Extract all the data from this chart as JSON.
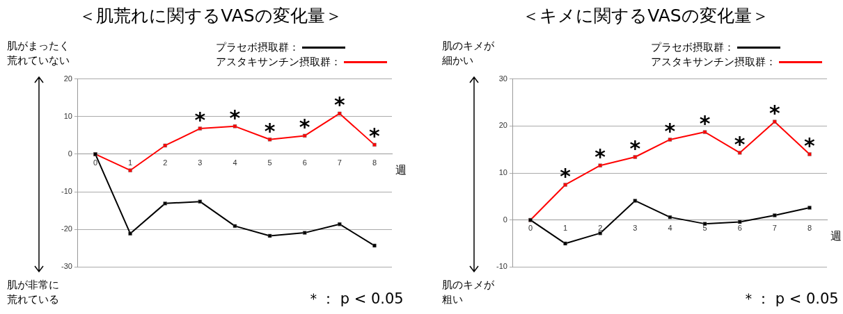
{
  "chart_data": [
    {
      "type": "line",
      "title": "＜肌荒れに関するVASの変化量＞",
      "xlabel": "週",
      "categories": [
        "0",
        "1",
        "2",
        "3",
        "4",
        "5",
        "6",
        "7",
        "8"
      ],
      "series": [
        {
          "name": "プラセボ摂取群：",
          "color": "#000000",
          "values": [
            0,
            -21.1,
            -13.1,
            -12.6,
            -19.1,
            -21.7,
            -20.9,
            -18.6,
            -24.3
          ]
        },
        {
          "name": "アスタキサンチン摂取群：",
          "color": "#ff0000",
          "values": [
            0,
            -4.3,
            2.3,
            6.8,
            7.4,
            3.9,
            4.9,
            10.8,
            2.5
          ]
        }
      ],
      "ylim": [
        -30,
        20
      ],
      "yticks": [
        -30,
        -20,
        -10,
        0,
        10,
        20
      ],
      "grid": "y",
      "legend": "top right",
      "marker": "square",
      "line_style": "solid",
      "annotations": [
        "肌がまったく荒れていない",
        "肌が非常に荒れている",
        "＊： p < 0.05",
        {
          "text": "*",
          "x": "3",
          "y": 6.8
        },
        {
          "text": "*",
          "x": "4",
          "y": 7.4
        },
        {
          "text": "*",
          "x": "5",
          "y": 3.9
        },
        {
          "text": "*",
          "x": "6",
          "y": 4.9
        },
        {
          "text": "*",
          "x": "7",
          "y": 10.8
        },
        {
          "text": "*",
          "x": "8",
          "y": 2.5
        }
      ]
    },
    {
      "type": "line",
      "title": "＜キメに関するVASの変化量＞",
      "xlabel": "週",
      "categories": [
        "0",
        "1",
        "2",
        "3",
        "4",
        "5",
        "6",
        "7",
        "8"
      ],
      "series": [
        {
          "name": "プラセボ摂取群：",
          "color": "#000000",
          "values": [
            0,
            -5,
            -2.8,
            4.1,
            0.6,
            -0.8,
            -0.4,
            1.0,
            2.6
          ]
        },
        {
          "name": "アスタキサンチン摂取群：",
          "color": "#ff0000",
          "values": [
            0,
            7.5,
            11.6,
            13.4,
            17.1,
            18.7,
            14.3,
            20.9,
            14.0
          ]
        }
      ],
      "ylim": [
        -10,
        30
      ],
      "yticks": [
        -10,
        0,
        10,
        20,
        30
      ],
      "grid": "y",
      "legend": "top right",
      "marker": "square",
      "line_style": "solid",
      "annotations": [
        "肌のキメが細かい",
        "肌のキメが粗い",
        "＊： p < 0.05",
        {
          "text": "*",
          "x": "1",
          "y": 7.5
        },
        {
          "text": "*",
          "x": "2",
          "y": 11.6
        },
        {
          "text": "*",
          "x": "3",
          "y": 13.4
        },
        {
          "text": "*",
          "x": "4",
          "y": 17.1
        },
        {
          "text": "*",
          "x": "5",
          "y": 18.7
        },
        {
          "text": "*",
          "x": "6",
          "y": 14.3
        },
        {
          "text": "*",
          "x": "7",
          "y": 20.9
        },
        {
          "text": "*",
          "x": "8",
          "y": 14.0
        }
      ]
    }
  ]
}
